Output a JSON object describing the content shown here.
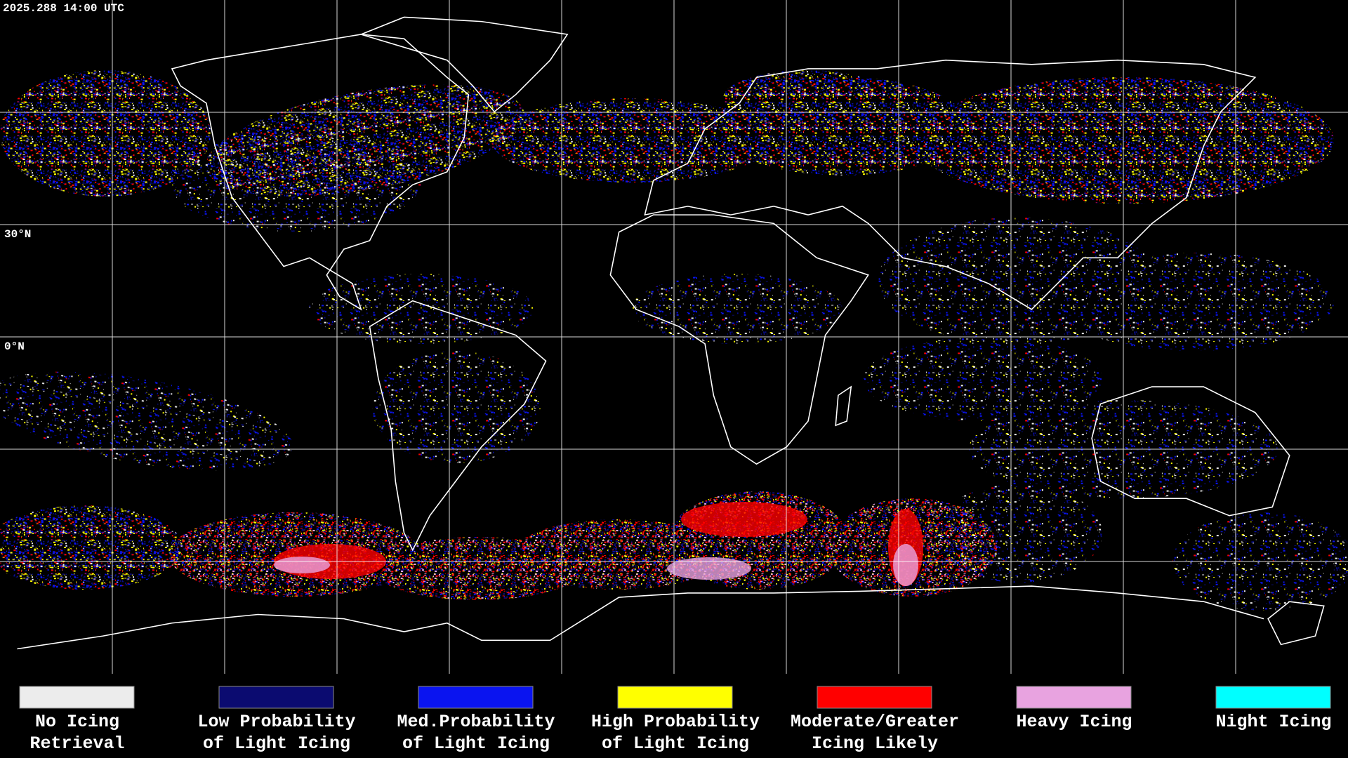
{
  "header": {
    "timestamp": "2025.288 14:00 UTC"
  },
  "map": {
    "latitude_labels": [
      "30°N",
      "0°N"
    ]
  },
  "legend": {
    "items": [
      {
        "label": [
          "No Icing",
          "Retrieval"
        ],
        "color": "#ececec"
      },
      {
        "label": [
          "Low Probability",
          "of Light Icing"
        ],
        "color": "#0b0b70"
      },
      {
        "label": [
          "Med.Probability",
          "of Light Icing"
        ],
        "color": "#0a14f0"
      },
      {
        "label": [
          "High Probability",
          "of Light Icing"
        ],
        "color": "#ffff00"
      },
      {
        "label": [
          "Moderate/Greater",
          "Icing Likely"
        ],
        "color": "#ff0000"
      },
      {
        "label": [
          "Heavy Icing"
        ],
        "color": "#e8a3e0"
      },
      {
        "label": [
          "Night Icing"
        ],
        "color": "#00ffff"
      }
    ]
  }
}
